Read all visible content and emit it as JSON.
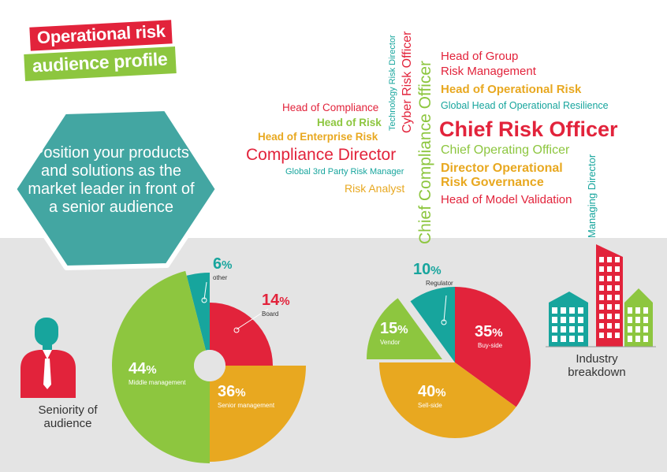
{
  "title": {
    "line1": "Operational risk",
    "line2": "audience profile"
  },
  "hexagon_text": "Position your products and solutions as the market leader in front of a senior audience",
  "word_cloud": {
    "horizontal": [
      {
        "text": "Head of Group",
        "color": "#e2233b"
      },
      {
        "text": "Risk Management",
        "color": "#e2233b"
      },
      {
        "text": "Head of Operational Risk",
        "color": "#e8a820"
      },
      {
        "text": "Global Head of Operational Resilience",
        "color": "#17a59d"
      },
      {
        "text": "Chief Risk Officer",
        "color": "#e2233b"
      },
      {
        "text": "Chief Operating Officer",
        "color": "#8dc63f"
      },
      {
        "text": "Director Operational",
        "color": "#e8a820"
      },
      {
        "text": "Risk Governance",
        "color": "#e8a820"
      },
      {
        "text": "Head of Model Validation",
        "color": "#e2233b"
      },
      {
        "text": "Head of Compliance",
        "color": "#e2233b"
      },
      {
        "text": "Head of Risk",
        "color": "#8dc63f"
      },
      {
        "text": "Head of Enterprise Risk",
        "color": "#e8a820"
      },
      {
        "text": "Compliance Director",
        "color": "#e2233b"
      },
      {
        "text": "Global 3rd Party Risk Manager",
        "color": "#17a59d"
      },
      {
        "text": "Risk Analyst",
        "color": "#e8a820"
      }
    ],
    "vertical": [
      {
        "text": "Technology Risk Director",
        "color": "#17a59d"
      },
      {
        "text": "Cyber Risk Officer",
        "color": "#e2233b"
      },
      {
        "text": "Chief Compliance Officer",
        "color": "#8dc63f"
      },
      {
        "text": "Managing Director",
        "color": "#17a59d"
      }
    ]
  },
  "captions": {
    "seniority": [
      "Seniority of",
      "audience"
    ],
    "industry": [
      "Industry",
      "breakdown"
    ]
  },
  "chart_data": [
    {
      "type": "pie",
      "title": "Seniority of audience",
      "slices": [
        {
          "label": "other",
          "value": 6,
          "color": "#17a59d"
        },
        {
          "label": "Board",
          "value": 14,
          "color": "#e2233b"
        },
        {
          "label": "Senior management",
          "value": 36,
          "color": "#e8a820"
        },
        {
          "label": "Middle management",
          "value": 44,
          "color": "#8dc63f"
        }
      ]
    },
    {
      "type": "pie",
      "title": "Industry breakdown",
      "slices": [
        {
          "label": "Buy-side",
          "value": 35,
          "color": "#e2233b"
        },
        {
          "label": "Sell-side",
          "value": 40,
          "color": "#e8a820"
        },
        {
          "label": "Vendor",
          "value": 15,
          "color": "#8dc63f"
        },
        {
          "label": "Regulator",
          "value": 10,
          "color": "#17a59d"
        }
      ]
    }
  ]
}
